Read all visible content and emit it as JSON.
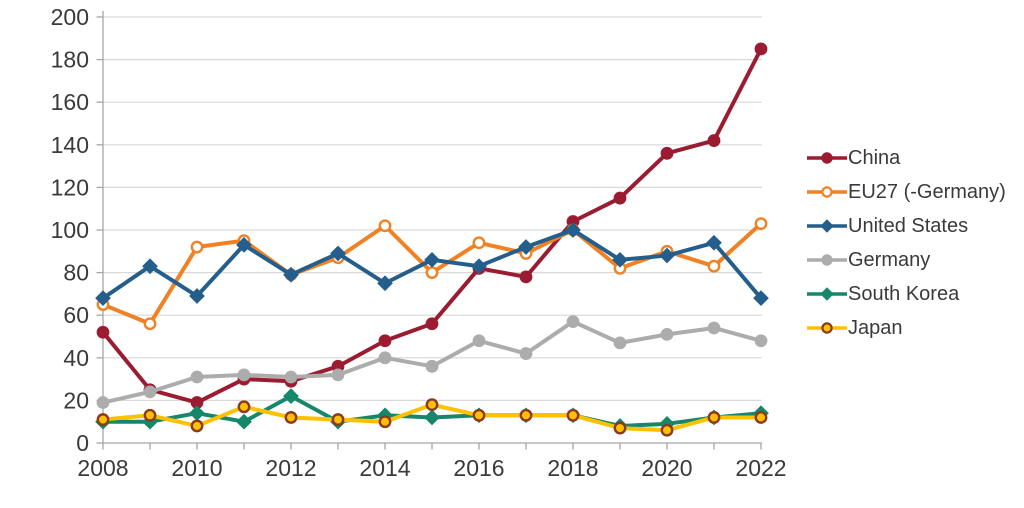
{
  "chart_data": {
    "type": "line",
    "title": "",
    "xlabel": "",
    "ylabel": "",
    "x": [
      2008,
      2009,
      2010,
      2011,
      2012,
      2013,
      2014,
      2015,
      2016,
      2017,
      2018,
      2019,
      2020,
      2021,
      2022
    ],
    "x_axis_labels": [
      "2008",
      "2010",
      "2012",
      "2014",
      "2016",
      "2018",
      "2020",
      "2022"
    ],
    "y_ticks": [
      0,
      20,
      40,
      60,
      80,
      100,
      120,
      140,
      160,
      180,
      200
    ],
    "ylim": [
      0,
      200
    ],
    "grid": true,
    "legend_position": "right",
    "colors": {
      "grid": "#d9d9d9",
      "axis": "#a6a6a6",
      "text": "#3a3a3a",
      "background": "#ffffff"
    },
    "series": [
      {
        "name": "China",
        "color": "#9B1C31",
        "marker": "circle",
        "marker_fill": "#9B1C31",
        "marker_stroke": "#9B1C31",
        "values": [
          52,
          25,
          19,
          30,
          29,
          36,
          48,
          56,
          82,
          78,
          104,
          115,
          136,
          142,
          185
        ]
      },
      {
        "name": "EU27 (-Germany)",
        "color": "#F08124",
        "marker": "circle",
        "marker_fill": "#ffffff",
        "marker_stroke": "#F08124",
        "values": [
          65,
          56,
          92,
          95,
          79,
          87,
          102,
          80,
          94,
          89,
          100,
          82,
          90,
          83,
          103
        ]
      },
      {
        "name": "United States",
        "color": "#245E8C",
        "marker": "diamond",
        "marker_fill": "#245E8C",
        "marker_stroke": "#245E8C",
        "values": [
          68,
          83,
          69,
          93,
          79,
          89,
          75,
          86,
          83,
          92,
          100,
          86,
          88,
          94,
          68
        ]
      },
      {
        "name": "Germany",
        "color": "#ACACAC",
        "marker": "circle",
        "marker_fill": "#ACACAC",
        "marker_stroke": "#ACACAC",
        "values": [
          19,
          24,
          31,
          32,
          31,
          32,
          40,
          36,
          48,
          42,
          57,
          47,
          51,
          54,
          48
        ]
      },
      {
        "name": "South Korea",
        "color": "#15876B",
        "marker": "diamond",
        "marker_fill": "#15876B",
        "marker_stroke": "#15876B",
        "values": [
          10,
          10,
          14,
          10,
          22,
          10,
          13,
          12,
          13,
          13,
          13,
          8,
          9,
          12,
          14
        ]
      },
      {
        "name": "Japan",
        "color": "#FFC000",
        "marker": "circle",
        "marker_fill": "#FFC000",
        "marker_stroke": "#8B3A1B",
        "values": [
          11,
          13,
          8,
          17,
          12,
          11,
          10,
          18,
          13,
          13,
          13,
          7,
          6,
          12,
          12
        ]
      }
    ]
  }
}
